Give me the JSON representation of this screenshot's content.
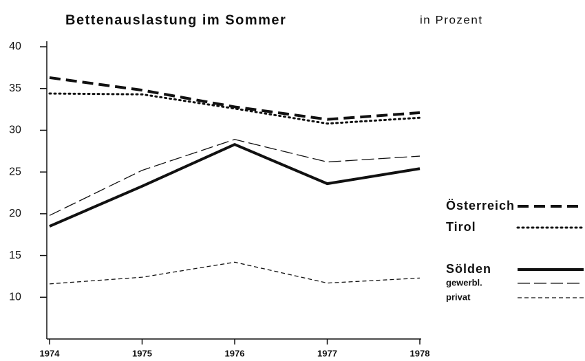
{
  "chart_data": {
    "type": "line",
    "title": "Bettenauslastung im Sommer",
    "subtitle": "in Prozent",
    "x": [
      1974,
      1975,
      1976,
      1977,
      1978
    ],
    "xlim": [
      1974,
      1978
    ],
    "xticks": [
      1974,
      1975,
      1976,
      1977,
      1978
    ],
    "ylim": [
      5,
      40
    ],
    "yticks": [
      10,
      15,
      20,
      25,
      30,
      35,
      40
    ],
    "grid": false,
    "legend": "right",
    "series": [
      {
        "name": "Österreich",
        "color": "#111111",
        "linestyle": "bold-dashed",
        "values": [
          36.3,
          34.8,
          32.8,
          31.3,
          32.1
        ]
      },
      {
        "name": "Tirol",
        "color": "#111111",
        "linestyle": "bold-dotted",
        "values": [
          34.4,
          34.3,
          32.6,
          30.8,
          31.5
        ]
      },
      {
        "name": "Sölden",
        "color": "#111111",
        "linestyle": "bold-solid",
        "values": [
          18.5,
          23.3,
          28.3,
          23.6,
          25.4
        ]
      },
      {
        "name": "gewerbl.",
        "color": "#111111",
        "linestyle": "long-dashed",
        "values": [
          19.8,
          25.2,
          28.9,
          26.2,
          26.9
        ]
      },
      {
        "name": "privat",
        "color": "#111111",
        "linestyle": "short-dashed",
        "values": [
          11.6,
          12.4,
          14.2,
          11.7,
          12.3
        ]
      }
    ]
  }
}
